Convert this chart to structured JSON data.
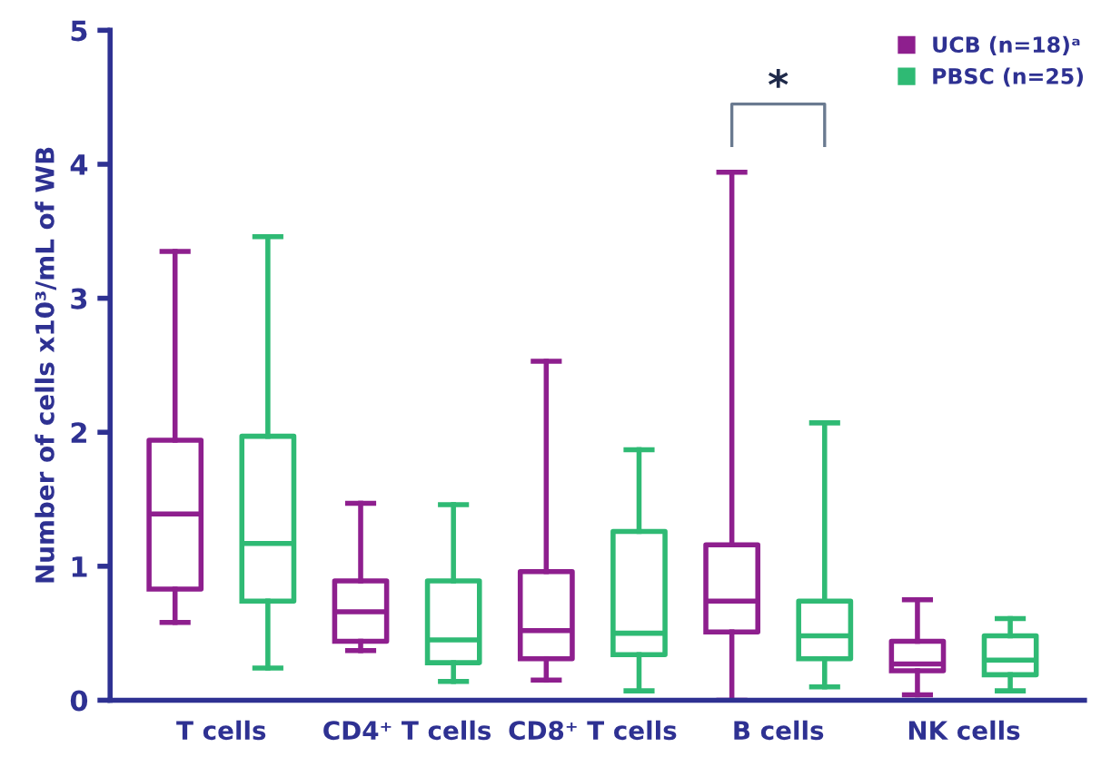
{
  "chart_data": {
    "type": "box",
    "ylabel": "Number of cells x10³/mL of WB",
    "categories": [
      "T cells",
      "CD4⁺ T cells",
      "CD8⁺ T cells",
      "B cells",
      "NK cells"
    ],
    "series": [
      {
        "name": "UCB (n=18)ᵃ",
        "color": "#8e1f8e",
        "boxes": [
          {
            "low": 0.58,
            "q1": 0.83,
            "median": 1.39,
            "q3": 1.94,
            "high": 3.35
          },
          {
            "low": 0.37,
            "q1": 0.44,
            "median": 0.66,
            "q3": 0.89,
            "high": 1.47
          },
          {
            "low": 0.15,
            "q1": 0.31,
            "median": 0.52,
            "q3": 0.96,
            "high": 2.53
          },
          {
            "low": 0,
            "q1": 0.51,
            "median": 0.74,
            "q3": 1.16,
            "high": 3.94
          },
          {
            "low": 0.04,
            "q1": 0.22,
            "median": 0.27,
            "q3": 0.44,
            "high": 0.75
          }
        ]
      },
      {
        "name": "PBSC (n=25)",
        "color": "#2fba74",
        "boxes": [
          {
            "low": 0.24,
            "q1": 0.74,
            "median": 1.17,
            "q3": 1.97,
            "high": 3.46
          },
          {
            "low": 0.14,
            "q1": 0.28,
            "median": 0.45,
            "q3": 0.89,
            "high": 1.46
          },
          {
            "low": 0.07,
            "q1": 0.34,
            "median": 0.5,
            "q3": 1.26,
            "high": 1.87
          },
          {
            "low": 0.1,
            "q1": 0.31,
            "median": 0.48,
            "q3": 0.74,
            "high": 2.07
          },
          {
            "low": 0.07,
            "q1": 0.19,
            "median": 0.3,
            "q3": 0.48,
            "high": 0.61
          }
        ]
      }
    ],
    "ylim": [
      0,
      5
    ],
    "yticks": [
      0,
      1,
      2,
      3,
      4,
      5
    ],
    "grid": false,
    "legend": "top right",
    "annotations": [
      "*"
    ]
  }
}
